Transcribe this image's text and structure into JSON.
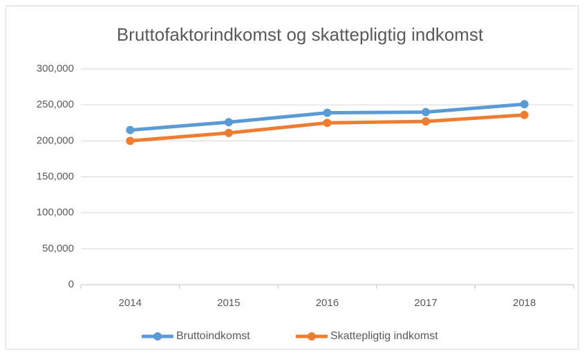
{
  "chart_data": {
    "type": "line",
    "title": "Bruttofaktorindkomst og skattepligtig indkomst",
    "categories": [
      "2014",
      "2015",
      "2016",
      "2017",
      "2018"
    ],
    "series": [
      {
        "name": "Bruttoindkomst",
        "color": "#5b9bd5",
        "values": [
          215000,
          226000,
          239000,
          240000,
          251000
        ]
      },
      {
        "name": "Skattepligtig indkomst",
        "color": "#ed7d31",
        "values": [
          200000,
          211000,
          225000,
          227000,
          236000
        ]
      }
    ],
    "ylim": [
      0,
      300000
    ],
    "yticks": [
      0,
      {
        "value": 50000,
        "label": "50,000"
      },
      {
        "value": 100000,
        "label": "100,000"
      },
      {
        "value": 150000,
        "label": "150,000"
      },
      {
        "value": 200000,
        "label": "200,000"
      },
      {
        "value": 250000,
        "label": "250,000"
      },
      {
        "value": 300000,
        "label": "300,000"
      }
    ],
    "grid": true,
    "legend": "bottom"
  }
}
